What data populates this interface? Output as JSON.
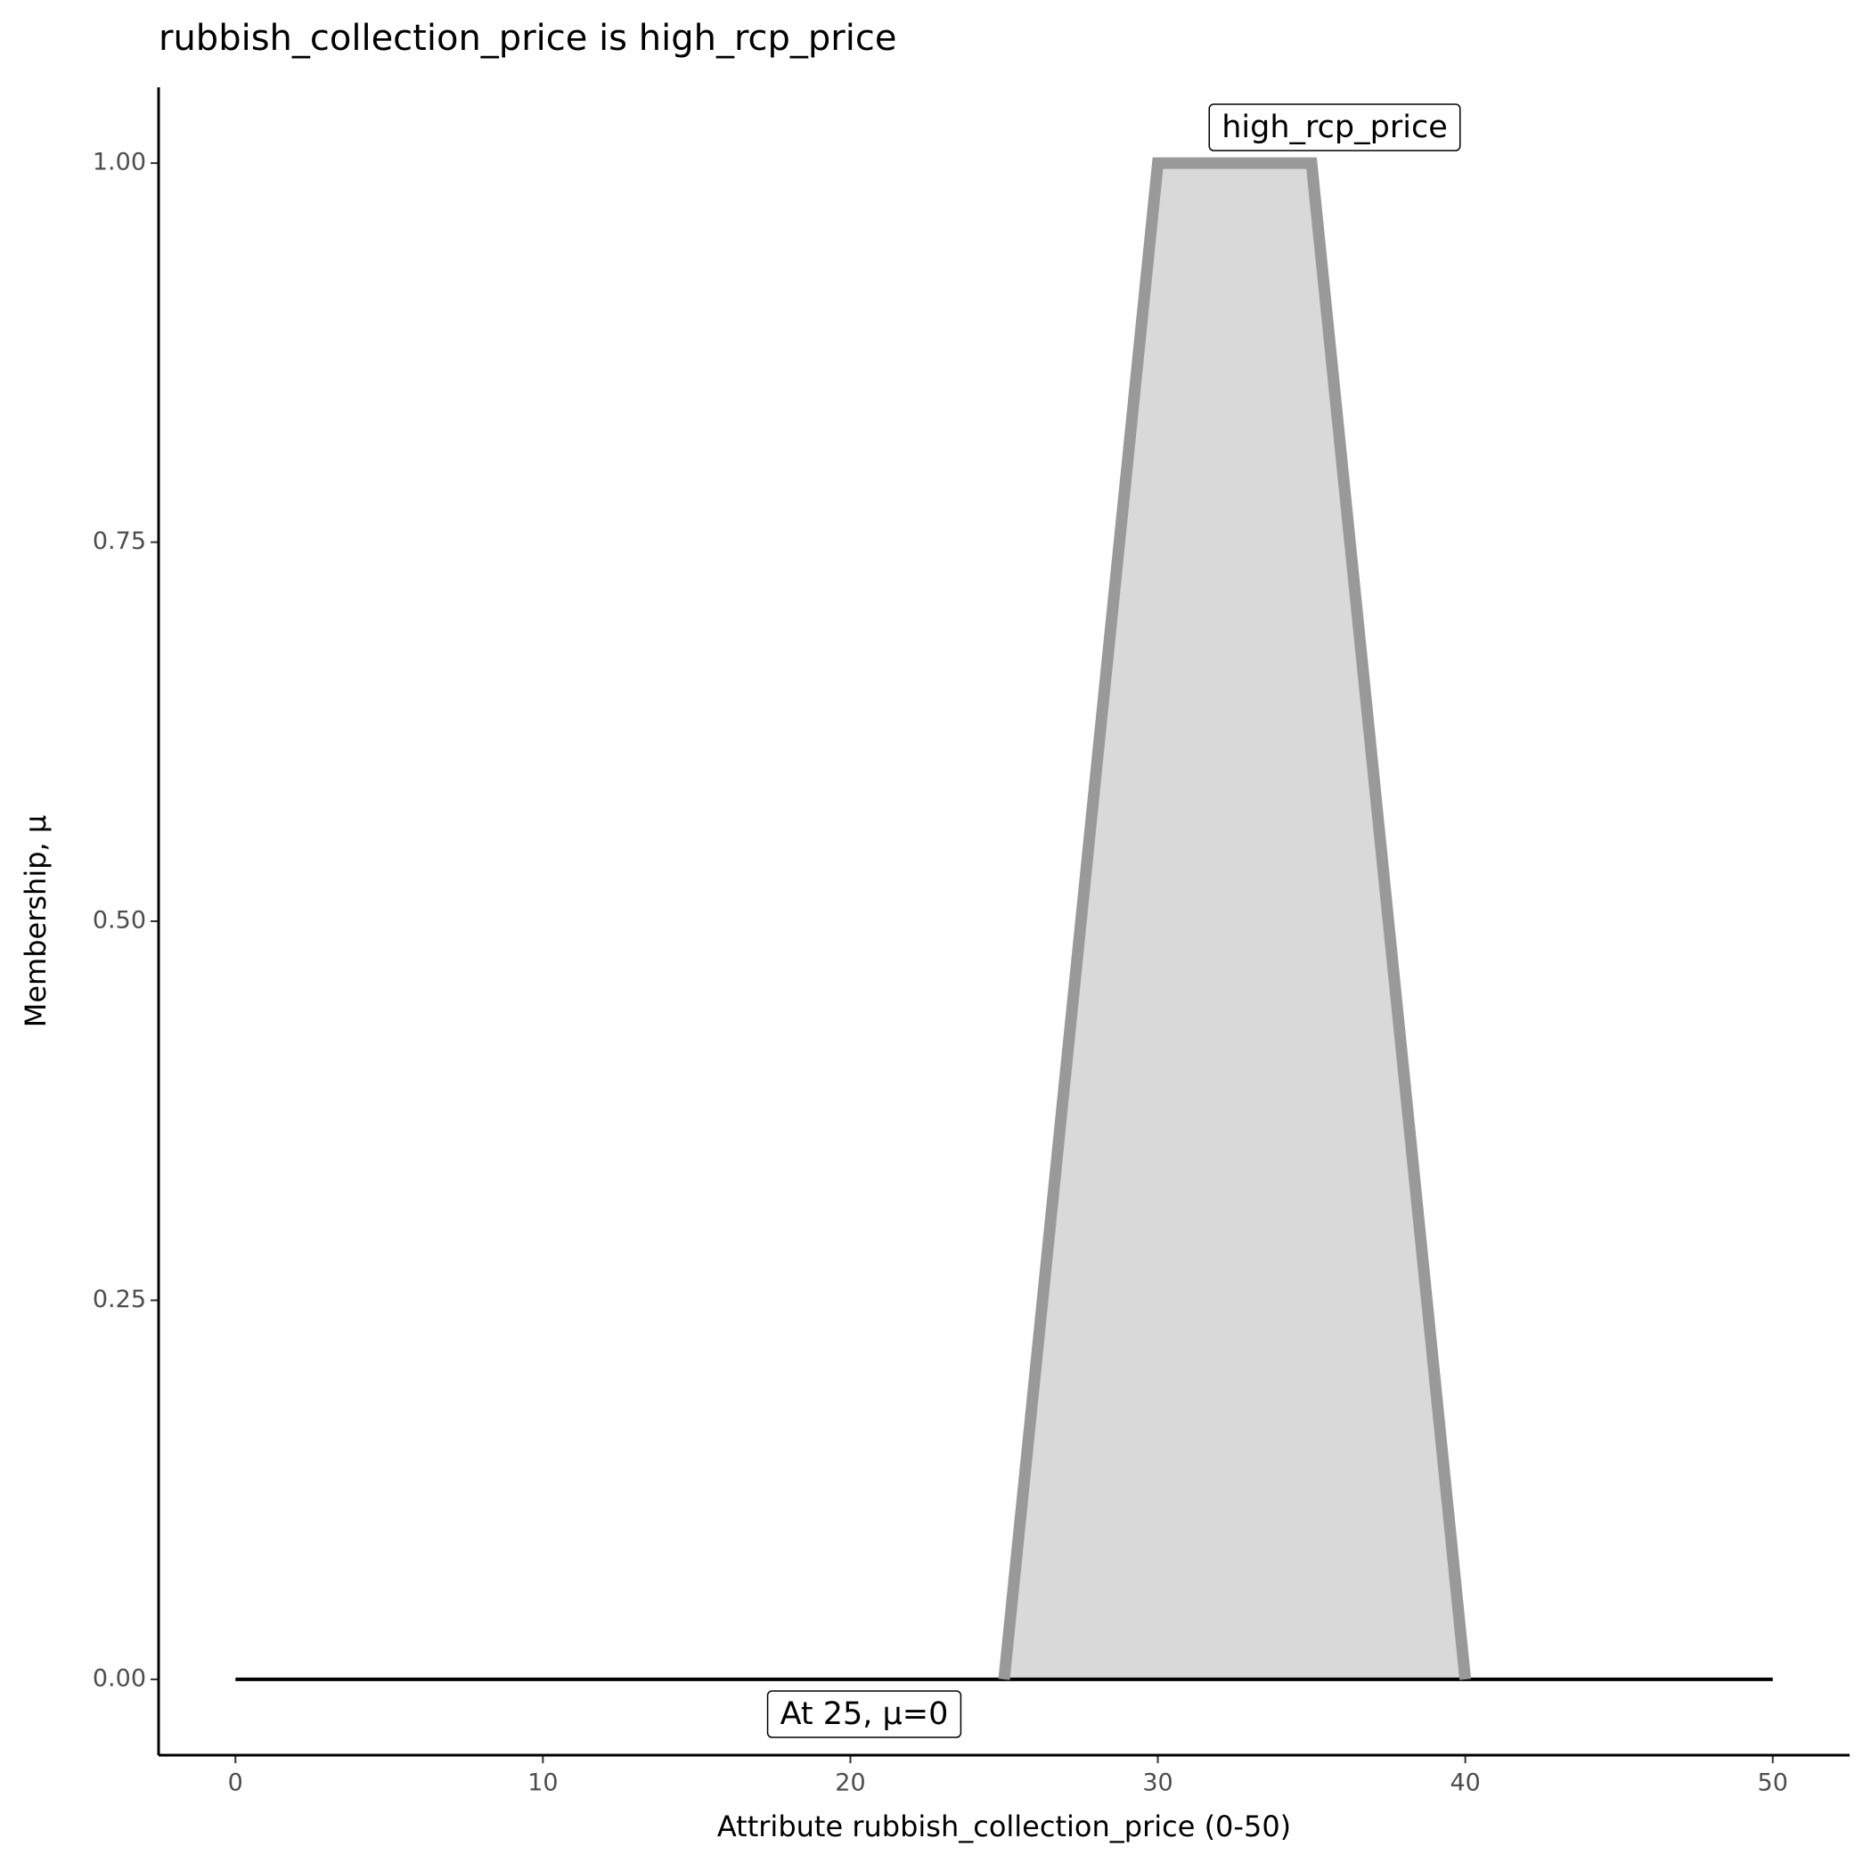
{
  "chart_data": {
    "type": "area",
    "title": "rubbish_collection_price is high_rcp_price",
    "x_label": "Attribute rubbish_collection_price (0-50)",
    "y_label": "Membership, μ",
    "xlim": [
      -2.5,
      52.5
    ],
    "ylim": [
      -0.05,
      1.05
    ],
    "xticks": [
      0,
      10,
      20,
      30,
      40,
      50
    ],
    "yticks": [
      {
        "value": 0,
        "label": "0.00"
      },
      {
        "value": 0.25,
        "label": "0.25"
      },
      {
        "value": 0.5,
        "label": "0.50"
      },
      {
        "value": 0.75,
        "label": "0.75"
      },
      {
        "value": 1,
        "label": "1.00"
      }
    ],
    "series": [
      {
        "name": "high_rcp_price",
        "color": "#999999",
        "fill": "#d9d9d9",
        "x": [
          25,
          30,
          35,
          40
        ],
        "values": [
          0,
          1,
          1,
          0
        ]
      }
    ],
    "baseline": {
      "color": "#000000",
      "x": [
        0,
        50
      ],
      "values": [
        0,
        0
      ]
    },
    "annotation": "At 25, μ=0"
  }
}
